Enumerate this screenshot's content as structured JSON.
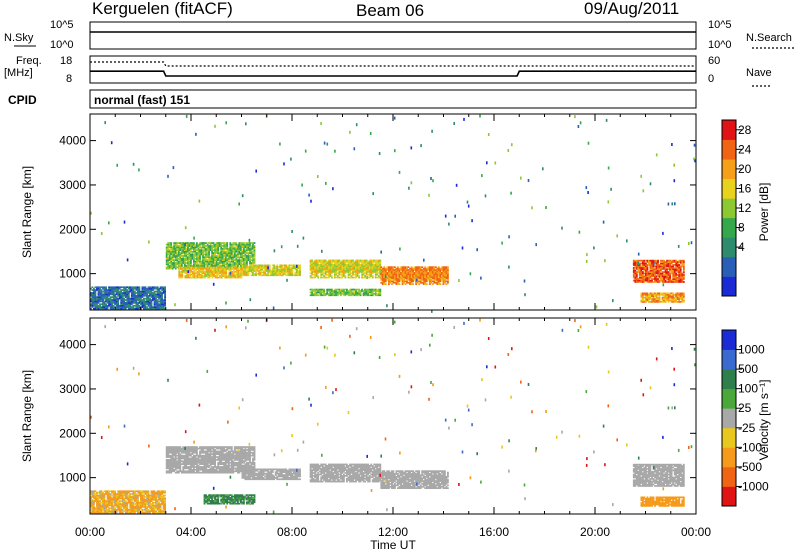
{
  "header": {
    "station": "Kerguelen (fitACF)",
    "beam": "Beam 06",
    "date": "09/Aug/2011"
  },
  "noise_panel": {
    "left_label": "N.Sky",
    "right_label": "N.Search",
    "left_ticks": [
      "10^5",
      "10^0"
    ],
    "right_ticks": [
      "10^5",
      "10^0"
    ]
  },
  "freq_panel": {
    "left_label_1": "Freq.",
    "left_label_2": "[MHz]",
    "right_label": "Nave",
    "left_ticks": [
      "18",
      "8"
    ],
    "right_ticks": [
      "60",
      "0"
    ]
  },
  "cpid": {
    "label": "CPID",
    "value": "normal (fast) 151"
  },
  "colors": {
    "power_scale": [
      "#1a2bd6",
      "#2a5fb8",
      "#2e8c6e",
      "#34a84a",
      "#8cc832",
      "#e8d21e",
      "#f5a018",
      "#f06414",
      "#e01414"
    ],
    "velocity_scale": [
      "#1a2bd6",
      "#3a6ad0",
      "#2f7f4c",
      "#4aa83a",
      "#a8a8a8",
      "#e8c81e",
      "#f59a1a",
      "#f06414",
      "#e01414"
    ],
    "ground_scatter": "#a8a8a8"
  },
  "chart_data": [
    {
      "type": "line",
      "title": "",
      "xlabel": "",
      "ylabel": "N.Sky",
      "y_scale": "log",
      "series": [
        {
          "name": "N.Sky",
          "x": [
            "00:00",
            "06:00",
            "12:00",
            "18:00",
            "24:00"
          ],
          "values": [
            100000,
            100000,
            100000,
            100000,
            100000
          ]
        }
      ]
    },
    {
      "type": "line",
      "xlabel": "",
      "ylabel": "Freq. [MHz]",
      "ylim": [
        8,
        18
      ],
      "series": [
        {
          "name": "Freq.",
          "x": [
            "00:00",
            "02:55",
            "03:00",
            "16:55",
            "17:00",
            "24:00"
          ],
          "values": [
            12.5,
            12.5,
            10.5,
            10.5,
            12.5,
            12.5
          ]
        },
        {
          "name": "Nave",
          "x": [
            "00:00",
            "02:55",
            "03:00",
            "24:00"
          ],
          "values": [
            50,
            50,
            40,
            40
          ]
        }
      ]
    },
    {
      "type": "heatmap",
      "ylabel": "Slant Range [km]",
      "xlabel": "",
      "x_ticks": [
        "00:00",
        "04:00",
        "08:00",
        "12:00",
        "16:00",
        "20:00",
        "00:00"
      ],
      "y_ticks": [
        "1000",
        "2000",
        "3000",
        "4000"
      ],
      "ylim": [
        180,
        4600
      ],
      "colorbar_label": "Power [dB]",
      "colorbar_ticks": [
        "28",
        "24",
        "20",
        "16",
        "12",
        "8",
        "4"
      ],
      "regions": [
        {
          "t0": 0.0,
          "t1": 3.0,
          "r0": 200,
          "r1": 700,
          "power": 6
        },
        {
          "t0": 3.0,
          "t1": 6.5,
          "r0": 1100,
          "r1": 1700,
          "power": 14
        },
        {
          "t0": 3.5,
          "t1": 6.0,
          "r0": 900,
          "r1": 1150,
          "power": 20
        },
        {
          "t0": 6.0,
          "t1": 8.3,
          "r0": 950,
          "r1": 1200,
          "power": 18
        },
        {
          "t0": 8.7,
          "t1": 11.5,
          "r0": 900,
          "r1": 1300,
          "power": 18
        },
        {
          "t0": 8.7,
          "t1": 11.5,
          "r0": 500,
          "r1": 650,
          "power": 14
        },
        {
          "t0": 11.5,
          "t1": 14.2,
          "r0": 750,
          "r1": 1150,
          "power": 24
        },
        {
          "t0": 21.5,
          "t1": 23.5,
          "r0": 800,
          "r1": 1300,
          "power": 26
        },
        {
          "t0": 21.8,
          "t1": 23.5,
          "r0": 350,
          "r1": 550,
          "power": 22
        }
      ]
    },
    {
      "type": "heatmap",
      "ylabel": "Slant Range [km]",
      "xlabel": "Time UT",
      "x_ticks": [
        "00:00",
        "04:00",
        "08:00",
        "12:00",
        "16:00",
        "20:00",
        "00:00"
      ],
      "y_ticks": [
        "1000",
        "2000",
        "3000",
        "4000"
      ],
      "ylim": [
        180,
        4600
      ],
      "colorbar_label": "Velocity [m s⁻¹]",
      "colorbar_ticks": [
        "1000",
        "500",
        "100",
        "25",
        "-25",
        "-100",
        "-500",
        "-1000"
      ],
      "regions": [
        {
          "t0": 3.0,
          "t1": 6.5,
          "r0": 1100,
          "r1": 1700,
          "velocity": 0
        },
        {
          "t0": 6.0,
          "t1": 8.3,
          "r0": 950,
          "r1": 1200,
          "velocity": 0
        },
        {
          "t0": 8.7,
          "t1": 11.5,
          "r0": 900,
          "r1": 1300,
          "velocity": 0
        },
        {
          "t0": 11.5,
          "t1": 14.2,
          "r0": 750,
          "r1": 1150,
          "velocity": 0
        },
        {
          "t0": 21.5,
          "t1": 23.5,
          "r0": 800,
          "r1": 1300,
          "velocity": 0
        },
        {
          "t0": 0.0,
          "t1": 3.0,
          "r0": 200,
          "r1": 700,
          "velocity": -150
        },
        {
          "t0": 4.5,
          "t1": 6.5,
          "r0": 400,
          "r1": 600,
          "velocity": 150
        },
        {
          "t0": 21.8,
          "t1": 23.5,
          "r0": 350,
          "r1": 550,
          "velocity": -300
        }
      ]
    }
  ]
}
